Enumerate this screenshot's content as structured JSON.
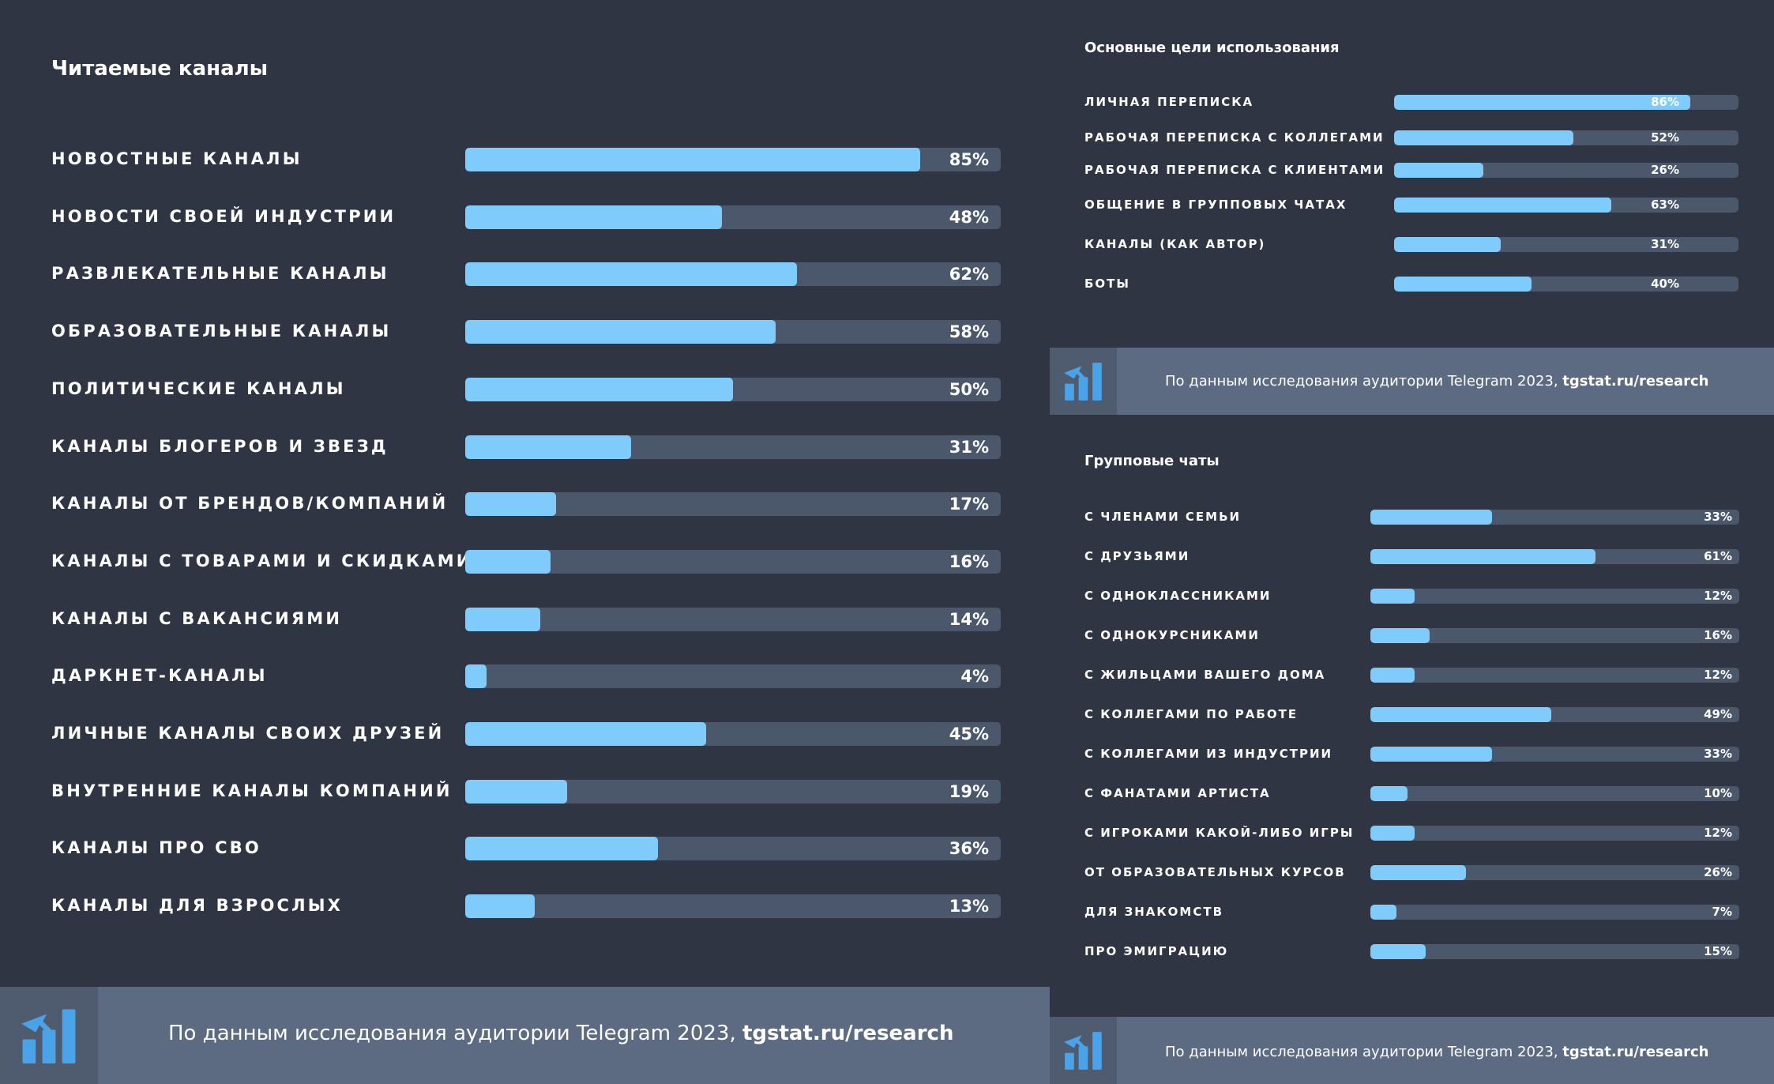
{
  "colors": {
    "background": "#2f3542",
    "track": "#4b586c",
    "bar": "#7ecbfc",
    "footer": "#5d6b82",
    "footer_logo_box": "#4f5c70",
    "logo": "#4aa3e8"
  },
  "footer": {
    "text": "По данным исследования аудитории Telegram 2023, ",
    "link": "tgstat.ru/research",
    "logo_icon": "tgstat-logo-icon"
  },
  "chart_data": [
    {
      "type": "bar",
      "orientation": "horizontal",
      "title": "Читаемые каналы",
      "unit": "%",
      "xlim": [
        0,
        100
      ],
      "categories": [
        "Новостные каналы",
        "Новости своей индустрии",
        "Развлекательные каналы",
        "Образовательные каналы",
        "Политические каналы",
        "Каналы блогеров и звезд",
        "Каналы от брендов/компаний",
        "Каналы с товарами и скидками",
        "Каналы с вакансиями",
        "Даркнет-каналы",
        "Личные каналы своих друзей",
        "Внутренние каналы компаний",
        "Каналы про СВО",
        "Каналы для взрослых"
      ],
      "values": [
        85,
        48,
        62,
        58,
        50,
        31,
        17,
        16,
        14,
        4,
        45,
        19,
        36,
        13
      ],
      "labels": [
        "85%",
        "48%",
        "62%",
        "58%",
        "50%",
        "31%",
        "17%",
        "16%",
        "14%",
        "4%",
        "45%",
        "19%",
        "36%",
        "13%"
      ]
    },
    {
      "type": "bar",
      "orientation": "horizontal",
      "title": "Основные цели использования",
      "unit": "%",
      "xlim": [
        0,
        100
      ],
      "categories": [
        "Личная переписка",
        "Рабочая переписка с коллегами",
        "Рабочая переписка с клиентами",
        "Общение в групповых чатах",
        "Каналы (как автор)",
        "Боты"
      ],
      "values": [
        86,
        52,
        26,
        63,
        31,
        40
      ],
      "labels": [
        "86%",
        "52%",
        "26%",
        "63%",
        "31%",
        "40%"
      ]
    },
    {
      "type": "bar",
      "orientation": "horizontal",
      "title": "Групповые чаты",
      "unit": "%",
      "xlim": [
        0,
        100
      ],
      "categories": [
        "С членами семьи",
        "С друзьями",
        "С одноклассниками",
        "С однокурсниками",
        "С жильцами вашего дома",
        "С коллегами по работе",
        "С коллегами из индустрии",
        "С фанатами артиста",
        "С игроками какой-либо игры",
        "От образовательных курсов",
        "Для знакомств",
        "Про эмиграцию"
      ],
      "values": [
        33,
        61,
        12,
        16,
        12,
        49,
        33,
        10,
        12,
        26,
        7,
        15
      ],
      "labels": [
        "33%",
        "61%",
        "12%",
        "16%",
        "12%",
        "49%",
        "33%",
        "10%",
        "12%",
        "26%",
        "7%",
        "15%"
      ]
    }
  ]
}
